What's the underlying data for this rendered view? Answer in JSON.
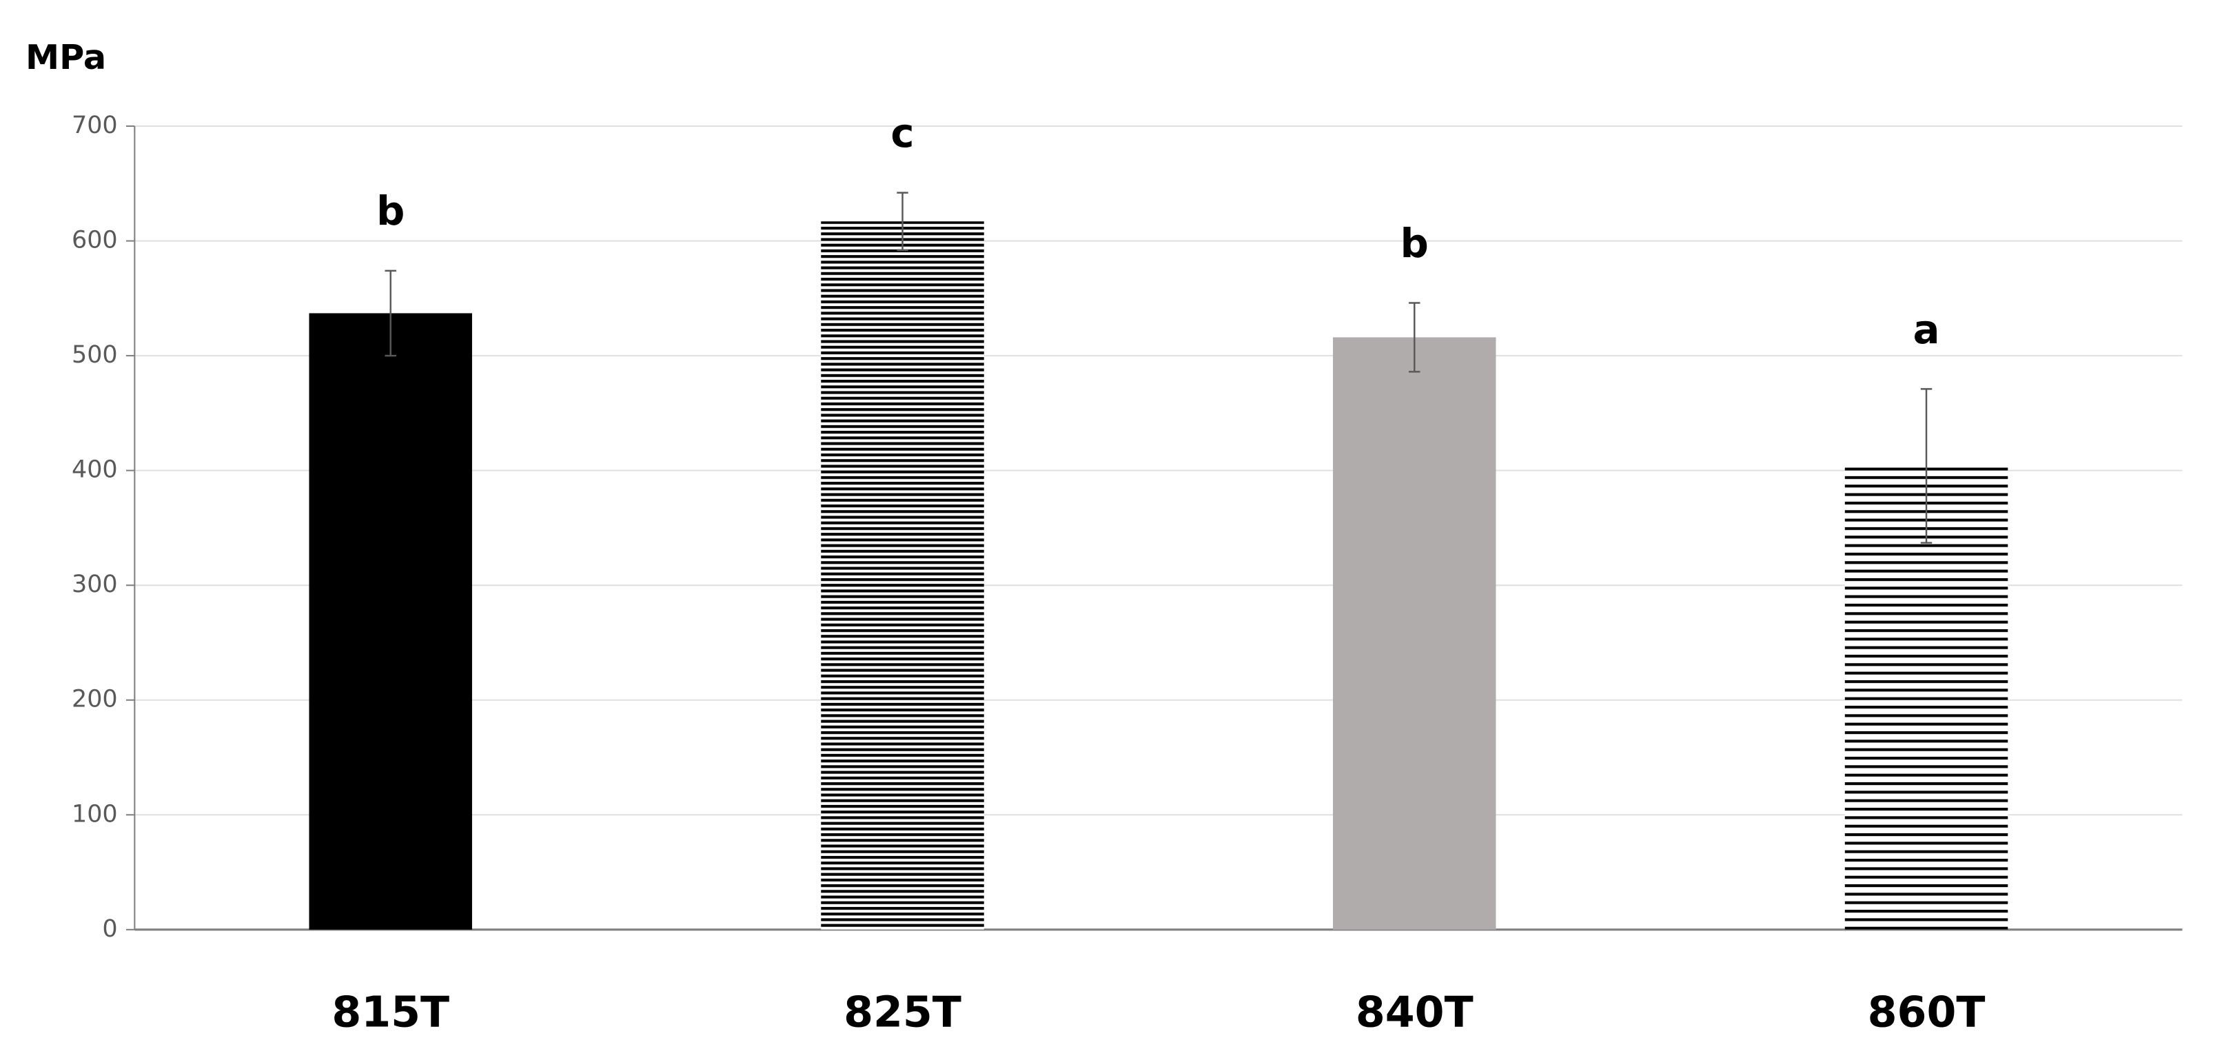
{
  "chart_data": {
    "type": "bar",
    "y_label": "MPa",
    "categories": [
      "815T",
      "825T",
      "840T",
      "860T"
    ],
    "values": [
      537,
      617,
      516,
      404
    ],
    "errors": [
      37,
      25,
      30,
      67
    ],
    "annotations": [
      "b",
      "c",
      "b",
      "a"
    ],
    "colors": [
      "#000000",
      "#000000",
      "#b1acac",
      "#000000"
    ],
    "patterns": [
      "solid",
      "stripes-dense",
      "solid",
      "stripes"
    ],
    "ylim": [
      0,
      700
    ],
    "yticks": [
      0,
      100,
      200,
      300,
      400,
      500,
      600,
      700
    ],
    "grid": true
  }
}
